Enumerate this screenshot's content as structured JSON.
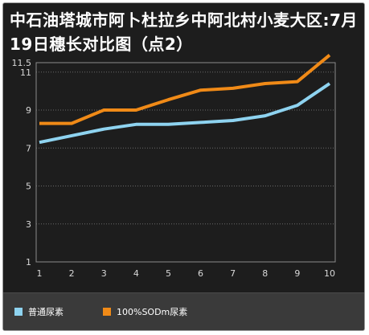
{
  "chart_data": {
    "type": "line",
    "title": "中石油塔城市阿卜杜拉乡中阿北村小麦大区:7月19日穗长对比图（点2）",
    "xlabel": "",
    "ylabel": "",
    "x": [
      1,
      2,
      3,
      4,
      5,
      6,
      7,
      8,
      9,
      10
    ],
    "y_ticks": [
      1,
      3,
      5,
      7,
      9,
      11,
      11.5
    ],
    "ylim": [
      1,
      11.5
    ],
    "grid": true,
    "legend_position": "bottom",
    "series": [
      {
        "name": "普通尿素",
        "color": "#8ed3f0",
        "values": [
          7.3,
          7.65,
          8.0,
          8.25,
          8.25,
          8.35,
          8.45,
          8.7,
          9.25,
          10.4
        ]
      },
      {
        "name": "100%SODm尿素",
        "color": "#f08a17",
        "values": [
          8.3,
          8.3,
          9.0,
          9.0,
          9.55,
          10.05,
          10.15,
          10.4,
          10.5,
          11.9
        ]
      }
    ]
  }
}
